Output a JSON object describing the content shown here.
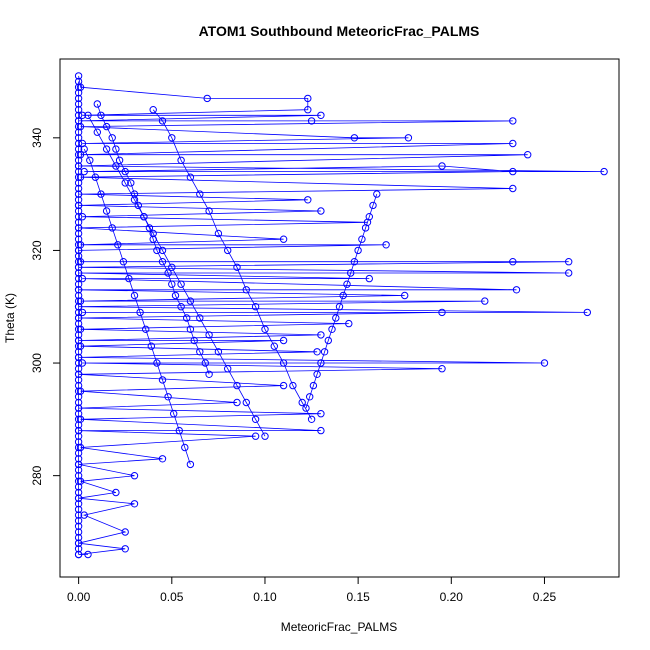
{
  "chart_data": {
    "type": "scatter",
    "title": "ATOM1 Southbound MeteoricFrac_PALMS",
    "xlabel": "MeteoricFrac_PALMS",
    "ylabel": "Theta (K)",
    "xlim": [
      -0.01,
      0.29
    ],
    "ylim": [
      262,
      354
    ],
    "xticks": [
      0.0,
      0.05,
      0.1,
      0.15,
      0.2,
      0.25
    ],
    "xtick_labels": [
      "0.00",
      "0.05",
      "0.10",
      "0.15",
      "0.20",
      "0.25"
    ],
    "yticks": [
      280,
      300,
      320,
      340
    ],
    "ytick_labels": [
      "280",
      "300",
      "320",
      "340"
    ],
    "grid": false,
    "legend": "none",
    "color": "#0000ff",
    "marker": "open-circle",
    "connected_by_lines": true,
    "series": [
      {
        "points": [
          [
            0.0,
            351
          ],
          [
            0.001,
            349
          ],
          [
            0.069,
            347
          ],
          [
            0.123,
            347
          ],
          [
            0.123,
            345
          ],
          [
            0.002,
            344
          ],
          [
            0.13,
            344
          ],
          [
            0.0,
            343
          ],
          [
            0.125,
            343
          ],
          [
            0.233,
            343
          ],
          [
            0.001,
            342
          ],
          [
            0.148,
            340
          ],
          [
            0.177,
            340
          ],
          [
            0.002,
            339
          ],
          [
            0.233,
            339
          ],
          [
            0.001,
            337
          ],
          [
            0.241,
            337
          ],
          [
            0.0,
            335
          ],
          [
            0.282,
            334
          ],
          [
            0.003,
            334
          ],
          [
            0.195,
            335
          ],
          [
            0.233,
            334
          ],
          [
            0.001,
            333
          ],
          [
            0.233,
            331
          ],
          [
            0.0,
            330
          ],
          [
            0.123,
            329
          ],
          [
            0.0,
            328
          ],
          [
            0.13,
            327
          ],
          [
            0.002,
            326
          ],
          [
            0.155,
            325
          ],
          [
            0.0,
            324
          ],
          [
            0.11,
            322
          ],
          [
            0.001,
            321
          ],
          [
            0.165,
            321
          ],
          [
            0.0,
            320
          ],
          [
            0.001,
            318
          ],
          [
            0.233,
            318
          ],
          [
            0.263,
            318
          ],
          [
            0.0,
            317
          ],
          [
            0.263,
            316
          ],
          [
            0.0,
            316
          ],
          [
            0.156,
            315
          ],
          [
            0.002,
            315
          ],
          [
            0.235,
            313
          ],
          [
            0.0,
            313
          ],
          [
            0.175,
            312
          ],
          [
            0.001,
            311
          ],
          [
            0.218,
            311
          ],
          [
            0.0,
            310
          ],
          [
            0.273,
            309
          ],
          [
            0.002,
            309
          ],
          [
            0.195,
            309
          ],
          [
            0.0,
            308
          ],
          [
            0.145,
            307
          ],
          [
            0.001,
            306
          ],
          [
            0.13,
            305
          ],
          [
            0.0,
            304
          ],
          [
            0.11,
            304
          ],
          [
            0.001,
            303
          ],
          [
            0.128,
            302
          ],
          [
            0.0,
            301
          ],
          [
            0.25,
            300
          ],
          [
            0.002,
            300
          ],
          [
            0.195,
            299
          ],
          [
            0.0,
            298
          ],
          [
            0.11,
            296
          ],
          [
            0.001,
            295
          ],
          [
            0.085,
            293
          ],
          [
            0.0,
            292
          ],
          [
            0.13,
            291
          ],
          [
            0.001,
            290
          ],
          [
            0.13,
            288
          ],
          [
            0.0,
            288
          ],
          [
            0.095,
            287
          ],
          [
            0.001,
            285
          ],
          [
            0.045,
            283
          ],
          [
            0.0,
            282
          ],
          [
            0.03,
            280
          ],
          [
            0.001,
            279
          ],
          [
            0.02,
            277
          ],
          [
            0.0,
            276
          ],
          [
            0.03,
            275
          ],
          [
            0.003,
            273
          ],
          [
            0.025,
            270
          ],
          [
            0.0,
            268
          ],
          [
            0.025,
            267
          ],
          [
            0.0,
            266
          ],
          [
            0.005,
            266
          ]
        ]
      },
      {
        "points": [
          [
            0.0,
            350
          ],
          [
            0.0,
            349
          ],
          [
            0.0,
            348
          ],
          [
            0.0,
            347
          ],
          [
            0.0,
            346
          ],
          [
            0.0,
            345
          ],
          [
            0.0,
            344
          ],
          [
            0.0,
            343
          ],
          [
            0.0,
            342
          ],
          [
            0.0,
            341
          ],
          [
            0.0,
            340
          ],
          [
            0.0,
            339
          ],
          [
            0.0,
            338
          ],
          [
            0.0,
            337
          ],
          [
            0.0,
            336
          ],
          [
            0.0,
            335
          ],
          [
            0.0,
            334
          ],
          [
            0.0,
            333
          ],
          [
            0.0,
            332
          ],
          [
            0.0,
            331
          ],
          [
            0.0,
            330
          ],
          [
            0.0,
            329
          ],
          [
            0.0,
            328
          ],
          [
            0.0,
            327
          ],
          [
            0.0,
            326
          ],
          [
            0.0,
            325
          ],
          [
            0.0,
            324
          ],
          [
            0.0,
            323
          ],
          [
            0.0,
            322
          ],
          [
            0.0,
            321
          ],
          [
            0.0,
            320
          ],
          [
            0.0,
            319
          ],
          [
            0.0,
            318
          ],
          [
            0.0,
            317
          ],
          [
            0.0,
            316
          ],
          [
            0.0,
            315
          ],
          [
            0.0,
            314
          ],
          [
            0.0,
            313
          ],
          [
            0.0,
            312
          ],
          [
            0.0,
            311
          ],
          [
            0.0,
            310
          ],
          [
            0.0,
            309
          ],
          [
            0.0,
            308
          ],
          [
            0.0,
            307
          ],
          [
            0.0,
            306
          ],
          [
            0.0,
            305
          ],
          [
            0.0,
            304
          ],
          [
            0.0,
            303
          ],
          [
            0.0,
            302
          ],
          [
            0.0,
            301
          ],
          [
            0.0,
            300
          ],
          [
            0.0,
            299
          ],
          [
            0.0,
            298
          ],
          [
            0.0,
            297
          ],
          [
            0.0,
            296
          ],
          [
            0.0,
            295
          ],
          [
            0.0,
            294
          ],
          [
            0.0,
            293
          ],
          [
            0.0,
            292
          ],
          [
            0.0,
            291
          ],
          [
            0.0,
            290
          ],
          [
            0.0,
            289
          ],
          [
            0.0,
            288
          ],
          [
            0.0,
            287
          ],
          [
            0.0,
            286
          ],
          [
            0.0,
            285
          ],
          [
            0.0,
            284
          ],
          [
            0.0,
            283
          ],
          [
            0.0,
            282
          ],
          [
            0.0,
            281
          ],
          [
            0.0,
            280
          ],
          [
            0.0,
            279
          ],
          [
            0.0,
            278
          ],
          [
            0.0,
            277
          ],
          [
            0.0,
            276
          ],
          [
            0.0,
            275
          ],
          [
            0.0,
            274
          ],
          [
            0.0,
            273
          ],
          [
            0.0,
            272
          ],
          [
            0.0,
            271
          ],
          [
            0.0,
            270
          ],
          [
            0.0,
            269
          ],
          [
            0.0,
            268
          ],
          [
            0.0,
            267
          ],
          [
            0.0,
            266
          ]
        ]
      },
      {
        "points": [
          [
            0.005,
            344
          ],
          [
            0.01,
            341
          ],
          [
            0.015,
            338
          ],
          [
            0.02,
            335
          ],
          [
            0.025,
            332
          ],
          [
            0.03,
            329
          ],
          [
            0.035,
            326
          ],
          [
            0.04,
            323
          ],
          [
            0.045,
            320
          ],
          [
            0.05,
            317
          ],
          [
            0.055,
            314
          ],
          [
            0.06,
            311
          ],
          [
            0.065,
            308
          ],
          [
            0.07,
            305
          ],
          [
            0.075,
            302
          ],
          [
            0.08,
            299
          ],
          [
            0.085,
            296
          ],
          [
            0.09,
            293
          ],
          [
            0.095,
            290
          ],
          [
            0.1,
            287
          ]
        ]
      },
      {
        "points": [
          [
            0.04,
            345
          ],
          [
            0.045,
            343
          ],
          [
            0.05,
            340
          ],
          [
            0.055,
            336
          ],
          [
            0.06,
            333
          ],
          [
            0.065,
            330
          ],
          [
            0.07,
            327
          ],
          [
            0.075,
            323
          ],
          [
            0.08,
            320
          ],
          [
            0.085,
            317
          ],
          [
            0.09,
            313
          ],
          [
            0.095,
            310
          ],
          [
            0.1,
            306
          ],
          [
            0.105,
            303
          ],
          [
            0.11,
            300
          ],
          [
            0.115,
            296
          ],
          [
            0.12,
            293
          ],
          [
            0.125,
            290
          ]
        ]
      },
      {
        "points": [
          [
            0.01,
            346
          ],
          [
            0.012,
            344
          ],
          [
            0.015,
            342
          ],
          [
            0.018,
            340
          ],
          [
            0.02,
            338
          ],
          [
            0.022,
            336
          ],
          [
            0.025,
            334
          ],
          [
            0.028,
            332
          ],
          [
            0.03,
            330
          ],
          [
            0.032,
            328
          ],
          [
            0.035,
            326
          ],
          [
            0.038,
            324
          ],
          [
            0.04,
            322
          ],
          [
            0.042,
            320
          ],
          [
            0.045,
            318
          ],
          [
            0.048,
            316
          ],
          [
            0.05,
            314
          ],
          [
            0.052,
            312
          ],
          [
            0.055,
            310
          ],
          [
            0.058,
            308
          ],
          [
            0.06,
            306
          ],
          [
            0.062,
            304
          ],
          [
            0.065,
            302
          ],
          [
            0.068,
            300
          ],
          [
            0.07,
            298
          ]
        ]
      },
      {
        "points": [
          [
            0.003,
            338
          ],
          [
            0.006,
            336
          ],
          [
            0.009,
            333
          ],
          [
            0.012,
            330
          ],
          [
            0.015,
            327
          ],
          [
            0.018,
            324
          ],
          [
            0.021,
            321
          ],
          [
            0.024,
            318
          ],
          [
            0.027,
            315
          ],
          [
            0.03,
            312
          ],
          [
            0.033,
            309
          ],
          [
            0.036,
            306
          ],
          [
            0.039,
            303
          ],
          [
            0.042,
            300
          ],
          [
            0.045,
            297
          ],
          [
            0.048,
            294
          ],
          [
            0.051,
            291
          ],
          [
            0.054,
            288
          ],
          [
            0.057,
            285
          ],
          [
            0.06,
            282
          ]
        ]
      },
      {
        "points": [
          [
            0.16,
            330
          ],
          [
            0.158,
            328
          ],
          [
            0.156,
            326
          ],
          [
            0.154,
            324
          ],
          [
            0.152,
            322
          ],
          [
            0.15,
            320
          ],
          [
            0.148,
            318
          ],
          [
            0.146,
            316
          ],
          [
            0.144,
            314
          ],
          [
            0.142,
            312
          ],
          [
            0.14,
            310
          ],
          [
            0.138,
            308
          ],
          [
            0.136,
            306
          ],
          [
            0.134,
            304
          ],
          [
            0.132,
            302
          ],
          [
            0.13,
            300
          ],
          [
            0.128,
            298
          ],
          [
            0.126,
            296
          ],
          [
            0.124,
            294
          ],
          [
            0.122,
            292
          ]
        ]
      }
    ]
  }
}
